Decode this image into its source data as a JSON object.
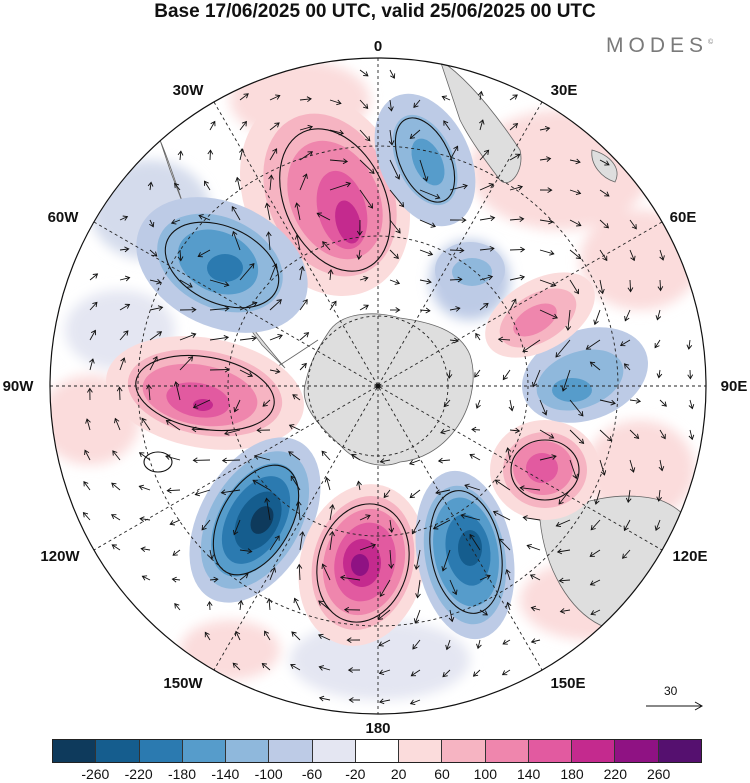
{
  "title": "Base 17/06/2025 00 UTC, valid 25/06/2025 00 UTC",
  "brand": "MODES",
  "brand_mark": "©",
  "map": {
    "projection": "south-polar-stereographic",
    "longitude_labels": {
      "top": "0",
      "top_right": "30E",
      "upper_right": "60E",
      "right": "90E",
      "lower_right": "120E",
      "bottom_right": "150E",
      "bottom": "180",
      "bottom_left": "150W",
      "lower_left": "120W",
      "left": "90W",
      "upper_left": "60W",
      "top_left": "30W"
    },
    "reference_vector": "30",
    "wind_vectors": "shown",
    "gridlines": "dashed"
  },
  "colorbar": {
    "colors": [
      "#0e3a5c",
      "#155d8e",
      "#2b7ab0",
      "#569ccb",
      "#8fb8dc",
      "#bdcbe6",
      "#e4e6f2",
      "#ffffff",
      "#fbdcdc",
      "#f6b4c2",
      "#ef86ad",
      "#e25aa0",
      "#c42a8e",
      "#8f1283",
      "#55106f"
    ],
    "labels": [
      "-260",
      "-220",
      "-180",
      "-140",
      "-100",
      "-60",
      "-20",
      "20",
      "60",
      "100",
      "140",
      "180",
      "220",
      "260"
    ]
  },
  "colors": {
    "land": "#dedede",
    "coast": "#666666",
    "vector": "#111111"
  }
}
